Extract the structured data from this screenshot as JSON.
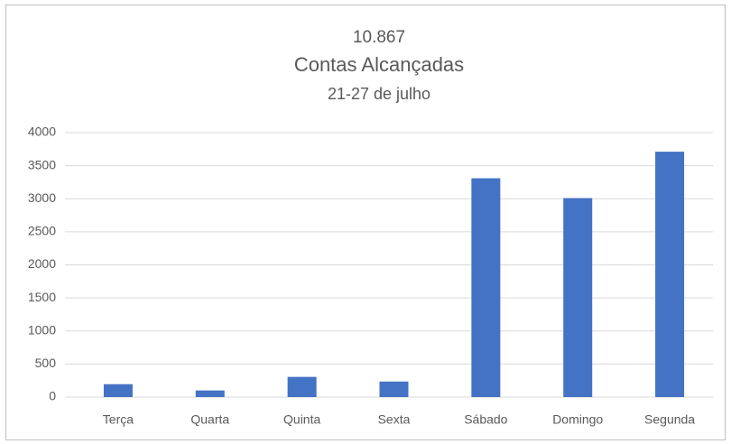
{
  "chart_data": {
    "type": "bar",
    "title_lines": [
      "10.867",
      "Contas Alcançadas",
      "21-27 de julho"
    ],
    "categories": [
      "Terça",
      "Quarta",
      "Quinta",
      "Sexta",
      "Sábado",
      "Domingo",
      "Segunda"
    ],
    "values": [
      195,
      100,
      305,
      235,
      3310,
      3010,
      3712
    ],
    "color": "#4472c4",
    "ylim": [
      0,
      4000
    ],
    "yticks": [
      0,
      500,
      1000,
      1500,
      2000,
      2500,
      3000,
      3500,
      4000
    ],
    "grid": true
  }
}
